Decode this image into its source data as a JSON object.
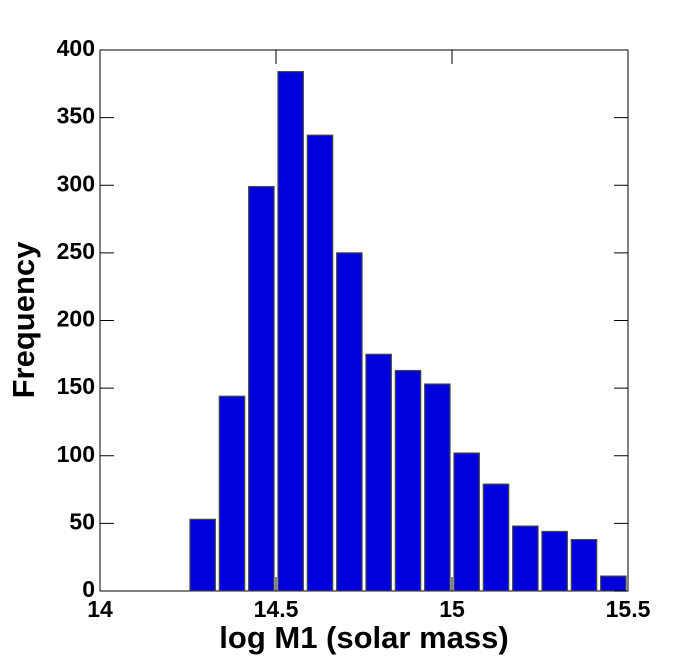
{
  "chart_data": {
    "type": "histogram",
    "xlabel": "log M1 (solar mass)",
    "ylabel": "Frequency",
    "bins": [
      14.25,
      14.3333,
      14.4167,
      14.5,
      14.5833,
      14.6667,
      14.75,
      14.8333,
      14.9167,
      15,
      15.0833,
      15.1667,
      15.25,
      15.3333,
      15.4167,
      15.5
    ],
    "values": [
      53,
      144,
      299,
      384,
      337,
      250,
      175,
      163,
      153,
      102,
      79,
      48,
      44,
      38,
      11
    ],
    "color": "#0000dd",
    "xlim": [
      14,
      15.5
    ],
    "xticks": [
      14,
      14.5,
      15,
      15.5
    ],
    "ylim": [
      0,
      400
    ],
    "yticks": [
      0,
      50,
      100,
      150,
      200,
      250,
      300,
      350,
      400
    ]
  }
}
